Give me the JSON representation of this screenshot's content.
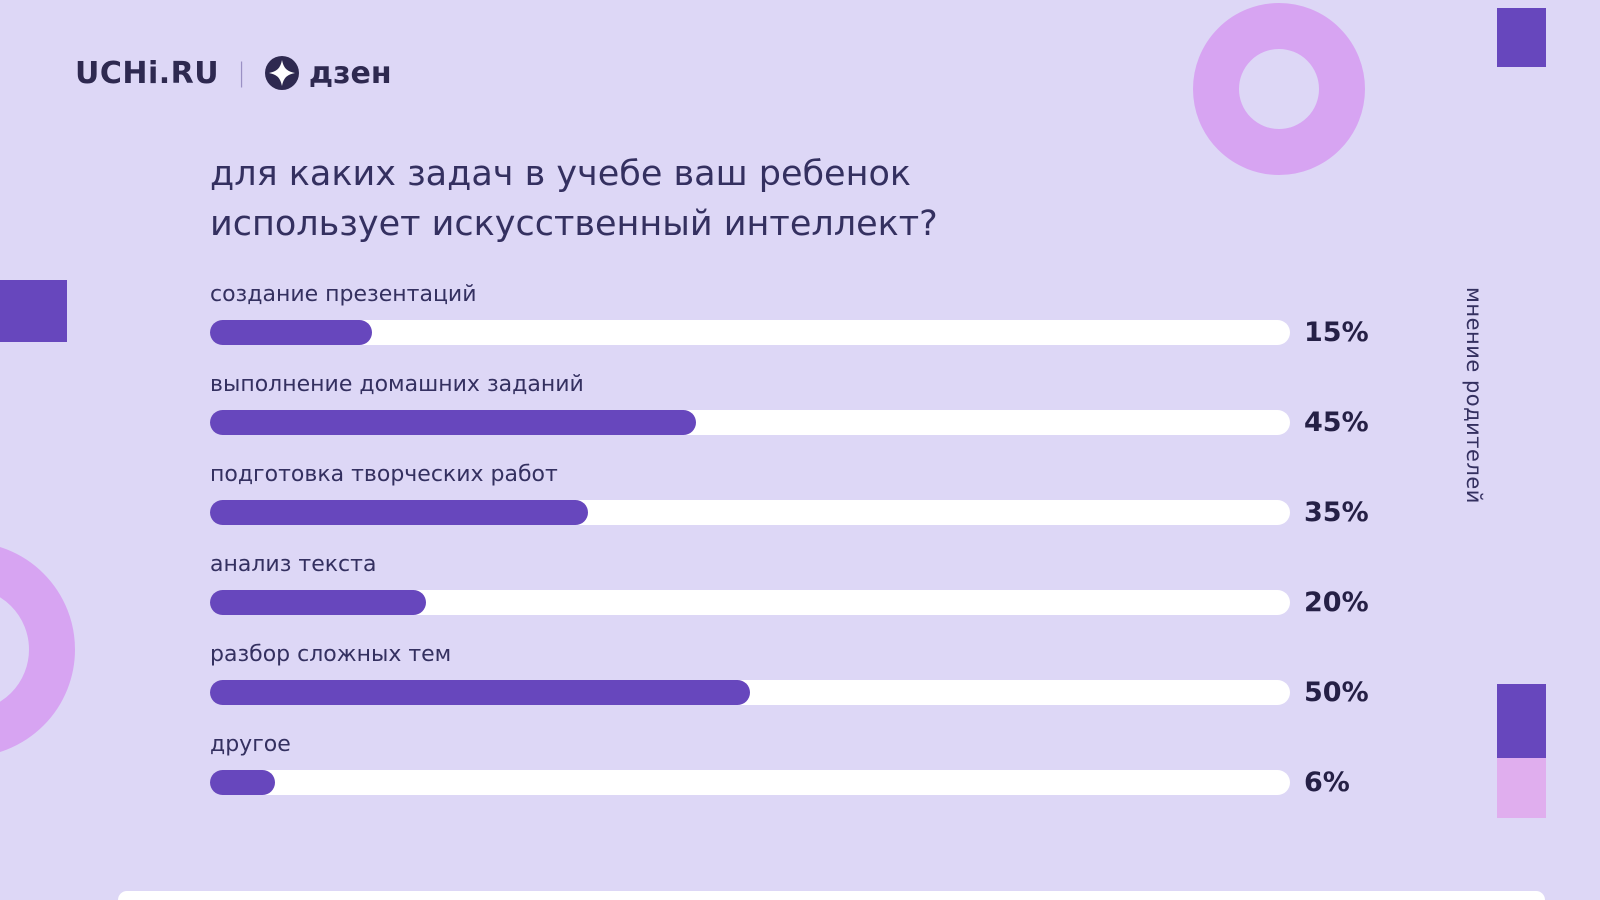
{
  "meta": {
    "colors": {
      "background": "#ddd7f6",
      "accent_purple": "#6747bd",
      "bar_track": "#ffffff",
      "text_dark": "#343060",
      "donut_light_purple": "#d7a4f2",
      "square_pink": "#e0aeee"
    }
  },
  "header": {
    "brand_left": "UCHi.RU",
    "separator": "|",
    "brand_right": "дзен"
  },
  "title": {
    "line1": "для каких задач в учебе ваш ребенок",
    "line2": "использует искусственный интеллект?"
  },
  "side_label": "мнение родителей",
  "chart_data": {
    "type": "bar",
    "orientation": "horizontal",
    "title": "для каких задач в учебе ваш ребенок использует искусственный интеллект?",
    "categories": [
      "создание презентаций",
      "выполнение домашних заданий",
      "подготовка творческих работ",
      "анализ текста",
      "разбор сложных тем",
      "другое"
    ],
    "values": [
      15,
      45,
      35,
      20,
      50,
      6
    ],
    "value_labels": [
      "15%",
      "45%",
      "35%",
      "20%",
      "50%",
      "6%"
    ],
    "xlim": [
      0,
      100
    ],
    "grid": false,
    "legend": "none"
  }
}
